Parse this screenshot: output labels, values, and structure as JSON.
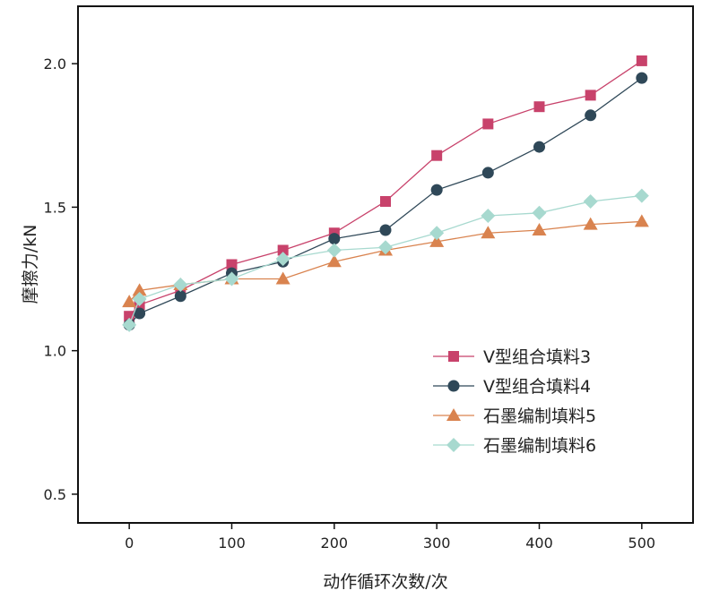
{
  "chart_data": {
    "type": "line",
    "xlabel": "动作循环次数/次",
    "ylabel": "摩擦力/kN",
    "xlim": [
      -50,
      550
    ],
    "ylim": [
      0.4,
      2.2
    ],
    "xticks": [
      0,
      100,
      200,
      300,
      400,
      500
    ],
    "yticks": [
      0.5,
      1.0,
      1.5,
      2.0
    ],
    "xtick_labels": [
      "0",
      "100",
      "200",
      "300",
      "400",
      "500"
    ],
    "ytick_labels": [
      "0.5",
      "1.0",
      "1.5",
      "2.0"
    ],
    "grid": false,
    "legend_position": "lower-right",
    "series": [
      {
        "name": "V型组合填料3",
        "color": "#c8426b",
        "marker": "square",
        "x": [
          0,
          10,
          50,
          100,
          150,
          200,
          250,
          300,
          350,
          400,
          450,
          500
        ],
        "y": [
          1.12,
          1.16,
          1.21,
          1.3,
          1.35,
          1.41,
          1.52,
          1.68,
          1.79,
          1.85,
          1.89,
          2.01
        ]
      },
      {
        "name": "V型组合填料4",
        "color": "#2f4858",
        "marker": "circle",
        "x": [
          0,
          10,
          50,
          100,
          150,
          200,
          250,
          300,
          350,
          400,
          450,
          500
        ],
        "y": [
          1.09,
          1.13,
          1.19,
          1.27,
          1.31,
          1.39,
          1.42,
          1.56,
          1.62,
          1.71,
          1.82,
          1.95
        ]
      },
      {
        "name": "石墨编制填料5",
        "color": "#d9834f",
        "marker": "triangle",
        "x": [
          0,
          10,
          50,
          100,
          150,
          200,
          250,
          300,
          350,
          400,
          450,
          500
        ],
        "y": [
          1.17,
          1.21,
          1.23,
          1.25,
          1.25,
          1.31,
          1.35,
          1.38,
          1.41,
          1.42,
          1.44,
          1.45
        ]
      },
      {
        "name": "石墨编制填料6",
        "color": "#a7d9cf",
        "marker": "diamond",
        "x": [
          0,
          10,
          50,
          100,
          150,
          200,
          250,
          300,
          350,
          400,
          450,
          500
        ],
        "y": [
          1.09,
          1.18,
          1.23,
          1.25,
          1.32,
          1.35,
          1.36,
          1.41,
          1.47,
          1.48,
          1.52,
          1.54
        ]
      }
    ]
  }
}
